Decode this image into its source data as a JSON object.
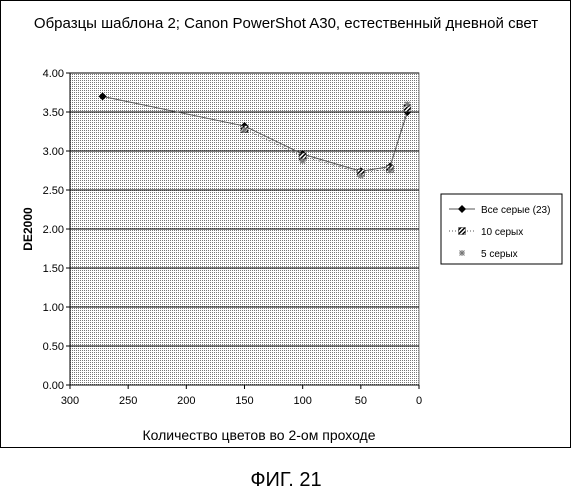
{
  "chart_data": {
    "type": "line",
    "title": "Образцы шаблона 2; Canon PowerShot A30, естественный дневной свет",
    "xlabel": "Количество цветов во 2-ом проходе",
    "ylabel": "DE2000",
    "xlim": [
      300,
      0
    ],
    "x_reversed": true,
    "ylim": [
      0,
      4
    ],
    "x_ticks": [
      "300",
      "250",
      "200",
      "150",
      "100",
      "50",
      "0"
    ],
    "x_tick_values": [
      300,
      250,
      200,
      150,
      100,
      50,
      0
    ],
    "y_ticks": [
      "0.00",
      "0.50",
      "1.00",
      "1.50",
      "2.00",
      "2.50",
      "3.00",
      "3.50",
      "4.00"
    ],
    "y_tick_values": [
      0,
      0.5,
      1,
      1.5,
      2,
      2.5,
      3,
      3.5,
      4
    ],
    "grid": true,
    "legend_position": "right",
    "series": [
      {
        "name": "Все серые (23)",
        "marker": "diamond",
        "style": "solid",
        "x": [
          272,
          150,
          100,
          50,
          25,
          10
        ],
        "y": [
          3.7,
          3.32,
          2.96,
          2.74,
          2.8,
          3.5
        ]
      },
      {
        "name": "10 серых",
        "marker": "hatched-square",
        "style": "dotted",
        "x": [
          150,
          100,
          50,
          25,
          10
        ],
        "y": [
          3.28,
          2.93,
          2.72,
          2.77,
          3.55
        ]
      },
      {
        "name": "5 серых",
        "marker": "star",
        "style": "none",
        "x": [
          150,
          100,
          50,
          25,
          10
        ],
        "y": [
          3.27,
          2.87,
          2.68,
          2.75,
          3.6
        ]
      }
    ]
  },
  "caption": "ФИГ. 21"
}
